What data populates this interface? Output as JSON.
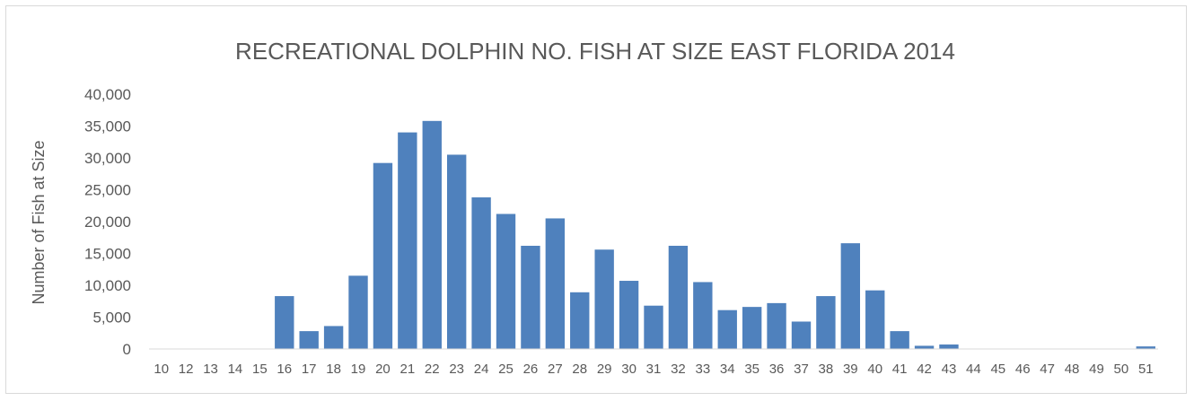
{
  "chart_data": {
    "type": "bar",
    "title": "RECREATIONAL DOLPHIN NO. FISH AT SIZE EAST FLORIDA 2014",
    "xlabel": "",
    "ylabel": "Number of Fish at Size",
    "ylim": [
      0,
      40000
    ],
    "yticks": [
      "0",
      "5,000",
      "10,000",
      "15,000",
      "20,000",
      "25,000",
      "30,000",
      "35,000",
      "40,000"
    ],
    "grid": false,
    "legend": "none",
    "bar_color": "#4f81bd",
    "categories": [
      "10",
      "12",
      "13",
      "14",
      "15",
      "16",
      "17",
      "18",
      "19",
      "20",
      "21",
      "22",
      "23",
      "24",
      "25",
      "26",
      "27",
      "28",
      "29",
      "30",
      "31",
      "32",
      "33",
      "34",
      "35",
      "36",
      "37",
      "38",
      "39",
      "40",
      "41",
      "42",
      "43",
      "44",
      "45",
      "46",
      "47",
      "48",
      "49",
      "50",
      "51"
    ],
    "values": [
      0,
      0,
      0,
      0,
      0,
      8300,
      2800,
      3600,
      11500,
      29200,
      34000,
      35800,
      30500,
      23800,
      21200,
      16200,
      20500,
      8900,
      15600,
      10700,
      6800,
      16200,
      10500,
      6100,
      6600,
      7200,
      4300,
      8300,
      16600,
      9200,
      2800,
      500,
      700,
      0,
      0,
      0,
      0,
      0,
      0,
      0,
      400
    ]
  }
}
